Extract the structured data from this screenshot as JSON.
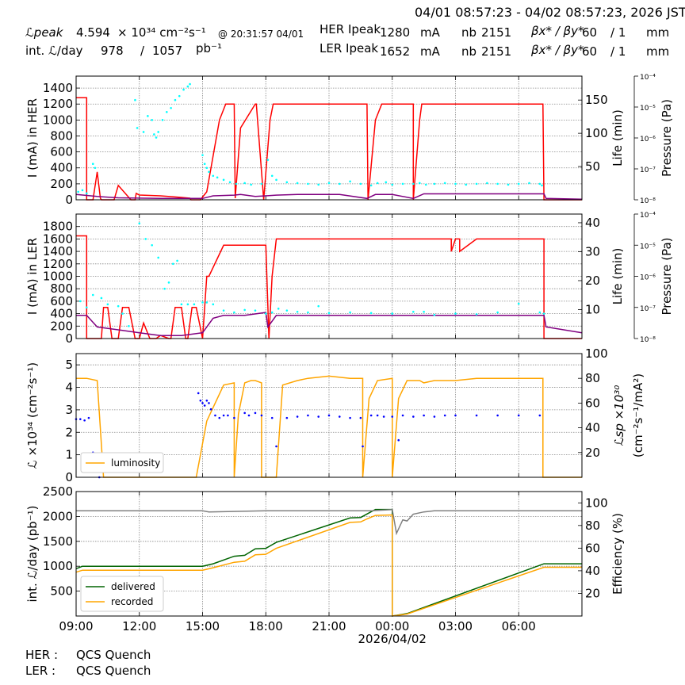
{
  "header": {
    "range": "04/01 08:57:23 - 04/02 08:57:23, 2026 JST",
    "lum_label": "ℒpeak",
    "lum_value": "4.594",
    "lum_unit": "× 10³⁴ cm⁻²s⁻¹",
    "lum_time": "@ 20:31:57 04/01",
    "int_label": "int. ℒ/day",
    "int_value": "978",
    "int_sep": "/",
    "int_total": "1057",
    "int_unit": "pb⁻¹",
    "her_label": "HER Ipeak",
    "her_value": "1280",
    "her_unit": "mA",
    "her_nb_label": "nb",
    "her_nb": "2151",
    "her_beta_label": "βx* / βy*",
    "her_beta_x": "60",
    "her_beta_y": "/ 1",
    "her_beta_unit": "mm",
    "ler_label": "LER Ipeak",
    "ler_value": "1652",
    "ler_unit": "mA",
    "ler_nb_label": "nb",
    "ler_nb": "2151",
    "ler_beta_label": "βx* / βy*",
    "ler_beta_x": "60",
    "ler_beta_y": "/ 1",
    "ler_beta_unit": "mm"
  },
  "footer": {
    "her_label": "HER :",
    "her_status": "QCS Quench",
    "ler_label": "LER :",
    "ler_status": "QCS Quench"
  },
  "colors": {
    "current": "#ff0000",
    "life": "#800080",
    "pressure": "#00ffff",
    "lumi": "#ffa500",
    "specific": "#0000ff",
    "delivered": "#006400",
    "recorded": "#ffa500",
    "efficiency": "#808080"
  },
  "chart_data": [
    {
      "type": "line",
      "panel": "her",
      "ylabel": "I (mA) in HER",
      "y2label": "Life (min)",
      "y3label": "Pressure (Pa)",
      "ylim": [
        0,
        1550
      ],
      "yticks": [
        0,
        200,
        400,
        600,
        800,
        1000,
        1200,
        1400
      ],
      "y2lim": [
        0,
        186
      ],
      "y2ticks": [
        50,
        100,
        150
      ],
      "y3ticks": [
        "10⁻⁴",
        "10⁻⁵",
        "10⁻⁶",
        "10⁻⁷",
        "10⁻⁸"
      ],
      "xlim": [
        9,
        33
      ],
      "series": [
        {
          "axis": "y",
          "color": "current",
          "x": [
            9,
            9.5,
            9.5,
            9.8,
            10,
            10.15,
            10.2,
            10.8,
            11,
            11.6,
            11.8,
            11.85,
            12,
            13,
            13.5,
            14,
            14.4,
            14.45,
            14.9,
            15.2,
            15.8,
            16.1,
            16.5,
            16.55,
            16.8,
            17.5,
            17.55,
            17.9,
            18.2,
            18.35,
            18.5,
            19,
            19.6,
            21.5,
            22.8,
            22.85,
            23.2,
            23.5,
            24,
            24.1,
            24.4,
            25,
            25,
            25.3,
            25.4,
            25.6,
            26,
            27,
            28,
            29,
            30,
            31,
            31.15,
            31.2,
            33
          ],
          "y": [
            1280,
            1280,
            0,
            0,
            350,
            20,
            0,
            0,
            180,
            0,
            0,
            80,
            60,
            50,
            40,
            30,
            20,
            0,
            0,
            100,
            1000,
            1200,
            1200,
            20,
            900,
            1200,
            1200,
            0,
            1000,
            1200,
            1200,
            1200,
            1200,
            1200,
            1200,
            0,
            1000,
            1200,
            1200,
            1200,
            1200,
            1200,
            0,
            1000,
            1200,
            1200,
            1200,
            1200,
            1200,
            1200,
            1200,
            1200,
            1200,
            0,
            0
          ]
        },
        {
          "axis": "y2",
          "color": "life",
          "x": [
            9,
            10,
            11,
            13,
            15,
            15.5,
            16.5,
            16.8,
            17.5,
            18,
            18.5,
            19.5,
            21.5,
            22.8,
            23.2,
            24,
            25,
            25.5,
            28,
            31.2,
            31.3,
            33
          ],
          "y": [
            8,
            5,
            3,
            2,
            2,
            6,
            7,
            8,
            5,
            6,
            7,
            8,
            8,
            2,
            8,
            8,
            2,
            9,
            9,
            9,
            2,
            1
          ]
        },
        {
          "axis": "y",
          "color": "pressure",
          "scatter": true,
          "x": [
            9.1,
            9.3,
            9.5,
            9.8,
            9.9,
            11.8,
            11.9,
            12.2,
            12.4,
            12.6,
            12.7,
            12.8,
            12.9,
            13.1,
            13.3,
            13.5,
            13.7,
            13.9,
            14.1,
            14.3,
            14.4,
            15,
            15.1,
            15.2,
            15.3,
            15.5,
            15.7,
            16,
            16.3,
            16.6,
            17,
            17.3,
            17.8,
            18.1,
            18.3,
            18.5,
            19,
            19.5,
            20,
            20.5,
            21,
            21.5,
            22,
            22.5,
            23,
            23.3,
            23.7,
            24,
            24.5,
            25,
            25.3,
            25.6,
            26,
            26.5,
            27,
            27.5,
            28,
            28.5,
            29,
            29.5,
            30,
            30.5,
            31,
            31.1
          ],
          "y": [
            100,
            120,
            80,
            450,
            400,
            1250,
            900,
            850,
            1050,
            1000,
            820,
            780,
            850,
            1000,
            1100,
            1150,
            1250,
            1300,
            1380,
            1420,
            1450,
            560,
            450,
            400,
            350,
            300,
            280,
            250,
            220,
            200,
            210,
            190,
            200,
            500,
            300,
            250,
            220,
            210,
            200,
            190,
            210,
            200,
            230,
            200,
            180,
            210,
            220,
            190,
            200,
            200,
            210,
            190,
            200,
            210,
            200,
            190,
            200,
            210,
            200,
            190,
            200,
            210,
            200,
            180
          ]
        }
      ]
    },
    {
      "type": "line",
      "panel": "ler",
      "ylabel": "I (mA) in LER",
      "y2label": "Life (min)",
      "y3label": "Pressure (Pa)",
      "ylim": [
        0,
        2000
      ],
      "yticks": [
        0,
        200,
        400,
        600,
        800,
        1000,
        1200,
        1400,
        1600,
        1800
      ],
      "y2lim": [
        0,
        43
      ],
      "y2ticks": [
        10,
        20,
        30,
        40
      ],
      "y3ticks": [
        "10⁻⁴",
        "10⁻⁵",
        "10⁻⁶",
        "10⁻⁷",
        "10⁻⁸"
      ],
      "xlim": [
        9,
        33
      ],
      "series": [
        {
          "axis": "y",
          "color": "current",
          "x": [
            9,
            9.5,
            9.5,
            10.2,
            10.3,
            10.5,
            10.7,
            11,
            11.2,
            11.5,
            11.8,
            12,
            12.2,
            12.5,
            12.8,
            13,
            13.4,
            13.5,
            13.7,
            14,
            14.2,
            14.3,
            14.5,
            14.7,
            15,
            15,
            15.2,
            15.3,
            16,
            16.5,
            17,
            17.5,
            18,
            18.15,
            18.3,
            18.5,
            18.8,
            19,
            20,
            21,
            22,
            22.8,
            22.8,
            23.5,
            24,
            25,
            26.8,
            26.8,
            27,
            27.2,
            27.2,
            28,
            30,
            31.2,
            31.2,
            33
          ],
          "y": [
            1650,
            1650,
            0,
            0,
            500,
            500,
            0,
            0,
            500,
            500,
            0,
            0,
            250,
            0,
            0,
            50,
            0,
            0,
            500,
            500,
            0,
            0,
            500,
            500,
            0,
            0,
            1000,
            1000,
            1500,
            1500,
            1500,
            1500,
            1500,
            0,
            1000,
            1600,
            1600,
            1600,
            1600,
            1600,
            1600,
            1600,
            1600,
            1600,
            1600,
            1600,
            1600,
            1400,
            1600,
            1600,
            1400,
            1600,
            1600,
            1600,
            0,
            0
          ]
        },
        {
          "axis": "y2",
          "color": "life",
          "x": [
            9,
            9.5,
            10,
            11,
            12,
            13,
            14,
            15,
            15.5,
            16,
            17,
            18,
            18.1,
            18.5,
            19,
            20,
            23,
            25,
            28,
            31.2,
            31.3,
            33
          ],
          "y": [
            8,
            8,
            4,
            3,
            2,
            1,
            1,
            2,
            7,
            8,
            8,
            9,
            4,
            8,
            8,
            8,
            8,
            8,
            8,
            8,
            4,
            2
          ]
        },
        {
          "axis": "y",
          "color": "pressure",
          "scatter": true,
          "x": [
            9.2,
            9.5,
            9.8,
            10.2,
            10.5,
            11,
            11.2,
            11.5,
            12,
            12.3,
            12.6,
            12.9,
            13.2,
            13.4,
            13.6,
            13.8,
            14,
            14.3,
            14.6,
            15,
            15.2,
            15.5,
            16,
            16.5,
            17,
            17.5,
            18,
            18.3,
            18.6,
            19,
            19.5,
            20,
            20.5,
            21,
            22,
            23,
            24,
            25,
            25.5,
            26,
            27,
            28,
            29,
            30,
            31,
            31.2
          ],
          "y": [
            600,
            500,
            700,
            650,
            550,
            520,
            400,
            200,
            1850,
            1600,
            1500,
            1300,
            800,
            900,
            1200,
            1250,
            550,
            550,
            550,
            580,
            580,
            550,
            450,
            420,
            460,
            450,
            400,
            420,
            480,
            450,
            430,
            420,
            520,
            410,
            420,
            410,
            400,
            430,
            430,
            380,
            400,
            390,
            420,
            560,
            420,
            400
          ]
        }
      ]
    },
    {
      "type": "line",
      "panel": "lumi",
      "ylabel": "ℒ ×10³⁴ (cm⁻²s⁻¹)",
      "y2label": "ℒsp ×10³⁰",
      "y2label2": "(cm⁻²s⁻¹/mA²)",
      "legend": "luminosity",
      "legend_position": "lower-left",
      "ylim": [
        0,
        5.5
      ],
      "yticks": [
        0,
        1,
        2,
        3,
        4,
        5
      ],
      "y2lim": [
        0,
        100
      ],
      "y2ticks": [
        20,
        40,
        60,
        80,
        100
      ],
      "xlim": [
        9,
        33
      ],
      "series": [
        {
          "axis": "y",
          "color": "lumi",
          "name": "luminosity",
          "x": [
            9,
            9.5,
            10,
            10.3,
            10.3,
            14.7,
            15.2,
            16,
            16.5,
            16.5,
            16.7,
            17,
            17.3,
            17.5,
            17.8,
            17.8,
            18.5,
            18.8,
            19.5,
            20,
            21,
            22,
            22.5,
            22.6,
            22.6,
            22.9,
            23.3,
            24,
            24,
            24.3,
            24.7,
            25.3,
            25.5,
            26,
            27,
            28,
            30,
            31,
            31.15,
            31.15,
            33
          ],
          "y": [
            4.4,
            4.4,
            4.3,
            0,
            0,
            0,
            2.5,
            4.1,
            4.2,
            0,
            2.8,
            4.2,
            4.3,
            4.3,
            4.2,
            0,
            0,
            4.1,
            4.3,
            4.4,
            4.5,
            4.4,
            4.4,
            4.4,
            0,
            3.5,
            4.3,
            4.4,
            0,
            3.5,
            4.3,
            4.3,
            4.2,
            4.3,
            4.3,
            4.4,
            4.4,
            4.4,
            4.4,
            0,
            0
          ]
        },
        {
          "axis": "y2",
          "color": "specific",
          "scatter": true,
          "x": [
            9,
            9.2,
            9.4,
            9.6,
            9.8,
            10,
            10.1,
            14.8,
            14.9,
            15,
            15.1,
            15.2,
            15.3,
            15.4,
            15.6,
            15.8,
            16,
            16.2,
            16.5,
            17,
            17.2,
            17.5,
            17.8,
            18.3,
            18.5,
            19,
            19.5,
            20,
            20.5,
            21,
            21.5,
            22,
            22.5,
            22.6,
            23,
            23.3,
            23.6,
            24,
            24.3,
            24.5,
            25,
            25.5,
            26,
            26.5,
            27,
            28,
            29,
            30,
            31
          ],
          "y": [
            47,
            47,
            46,
            48,
            20,
            5,
            0,
            68,
            62,
            60,
            58,
            62,
            60,
            55,
            50,
            48,
            50,
            50,
            48,
            52,
            50,
            52,
            50,
            48,
            25,
            48,
            49,
            50,
            49,
            50,
            49,
            48,
            48,
            25,
            50,
            50,
            49,
            49,
            30,
            50,
            49,
            50,
            49,
            50,
            50,
            50,
            50,
            50,
            50
          ]
        }
      ]
    },
    {
      "type": "line",
      "panel": "integrated",
      "ylabel": "int. ℒ/day (pb⁻¹)",
      "y2label": "Efficiency (%)",
      "legend_position": "lower-left",
      "ylim": [
        0,
        2500
      ],
      "yticks": [
        500,
        1000,
        1500,
        2000,
        2500
      ],
      "y2lim": [
        0,
        110
      ],
      "y2ticks": [
        20,
        40,
        60,
        80,
        100
      ],
      "xlim": [
        9,
        33
      ],
      "xticks": [
        "09:00",
        "12:00",
        "15:00",
        "18:00",
        "21:00",
        "00:00",
        "03:00",
        "06:00"
      ],
      "xdate": "2026/04/02",
      "series": [
        {
          "axis": "y",
          "color": "delivered",
          "name": "delivered",
          "x": [
            9,
            9.3,
            15,
            15.5,
            16.5,
            17,
            17.5,
            18,
            18.5,
            22,
            22.5,
            22.8,
            23.2,
            24,
            24,
            24.7,
            31.2,
            33
          ],
          "y": [
            950,
            1000,
            1000,
            1050,
            1200,
            1220,
            1350,
            1360,
            1480,
            1970,
            1980,
            2050,
            2140,
            2140,
            0,
            50,
            1050,
            1050
          ]
        },
        {
          "axis": "y",
          "color": "recorded",
          "name": "recorded",
          "x": [
            9,
            9.3,
            15,
            15.5,
            16.5,
            17,
            17.5,
            18,
            18.5,
            22,
            22.5,
            22.8,
            23.2,
            24,
            24,
            24.7,
            31.2,
            33
          ],
          "y": [
            880,
            920,
            920,
            970,
            1080,
            1100,
            1230,
            1240,
            1360,
            1880,
            1890,
            1950,
            2020,
            2030,
            0,
            40,
            980,
            980
          ]
        },
        {
          "axis": "y2",
          "color": "efficiency",
          "name": "efficiency",
          "x": [
            9,
            15,
            15.3,
            18,
            23,
            24,
            24.2,
            24.5,
            24.7,
            25,
            25.5,
            26,
            27,
            33
          ],
          "y": [
            93,
            93,
            92,
            93,
            93,
            94,
            73,
            85,
            84,
            90,
            92,
            93,
            93,
            93
          ]
        }
      ]
    }
  ]
}
